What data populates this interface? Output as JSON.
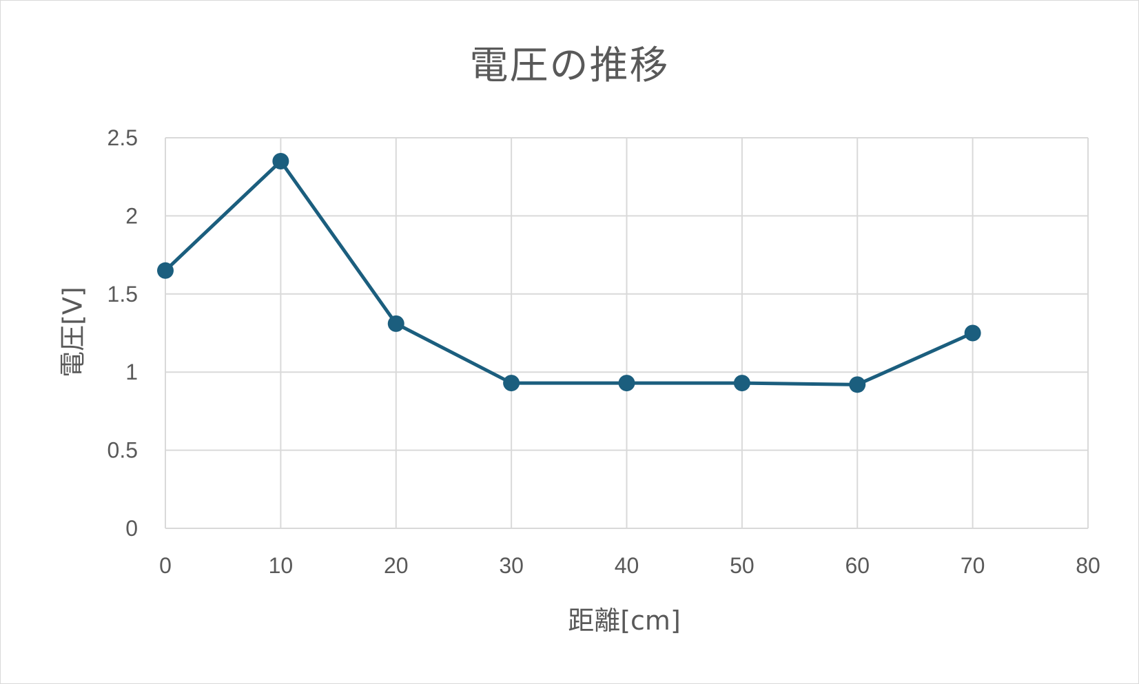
{
  "chart_data": {
    "type": "line",
    "title": "電圧の推移",
    "xlabel": "距離[cm]",
    "ylabel": "電圧[V]",
    "xlim": [
      0,
      80
    ],
    "ylim": [
      0,
      2.5
    ],
    "x_ticks": [
      "0",
      "10",
      "20",
      "30",
      "40",
      "50",
      "60",
      "70",
      "80"
    ],
    "y_ticks": [
      "0",
      "0.5",
      "1",
      "1.5",
      "2",
      "2.5"
    ],
    "grid": true,
    "legend": "none",
    "series": [
      {
        "x": [
          0,
          10,
          20,
          30,
          40,
          50,
          60,
          70
        ],
        "y": [
          1.65,
          2.35,
          1.31,
          0.93,
          0.93,
          0.93,
          0.92,
          1.25
        ],
        "color": "#1b5e7e",
        "marker": "circle"
      }
    ],
    "colors": {
      "line": "#1b5e7e",
      "grid": "#d9d9d9",
      "text": "#595959"
    }
  }
}
